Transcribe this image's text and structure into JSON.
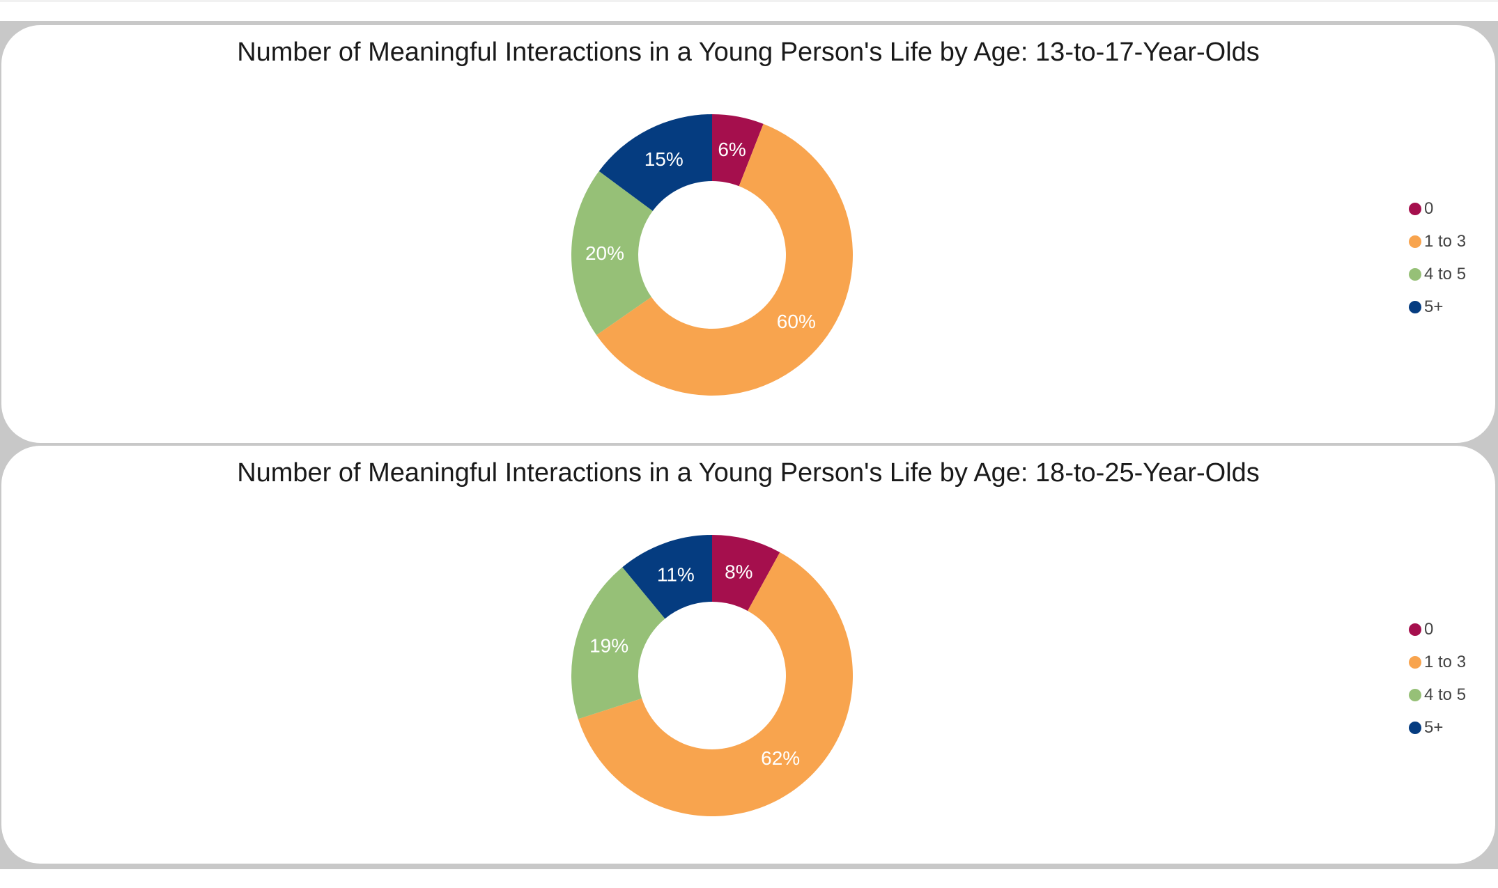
{
  "chart_data": [
    {
      "type": "pie",
      "title": "Number of Meaningful Interactions in a Young Person's Life by Age: 13-to-17-Year-Olds",
      "categories": [
        "0",
        "1 to 3",
        "4 to 5",
        "5+"
      ],
      "values": [
        6,
        60,
        20,
        15
      ],
      "labels": [
        "6%",
        "60%",
        "20%",
        "15%"
      ],
      "colors": [
        "#a50f4d",
        "#f8a44e",
        "#96c077",
        "#053c80"
      ],
      "legend_position": "right"
    },
    {
      "type": "pie",
      "title": "Number of Meaningful Interactions in a Young Person's Life by Age: 18-to-25-Year-Olds",
      "categories": [
        "0",
        "1 to 3",
        "4 to 5",
        "5+"
      ],
      "values": [
        8,
        62,
        19,
        11
      ],
      "labels": [
        "8%",
        "62%",
        "19%",
        "11%"
      ],
      "colors": [
        "#a50f4d",
        "#f8a44e",
        "#96c077",
        "#053c80"
      ],
      "legend_position": "right"
    }
  ]
}
